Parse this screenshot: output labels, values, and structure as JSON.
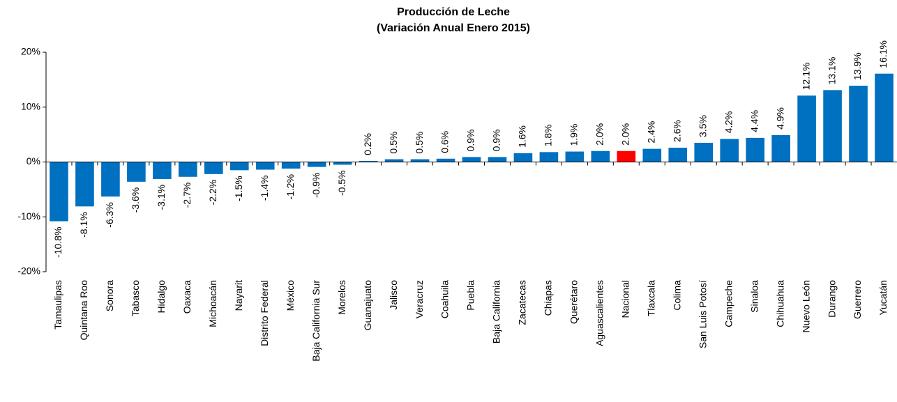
{
  "chart_data": {
    "type": "bar",
    "title": "Producción de Leche",
    "subtitle": "(Variación Anual Enero 2015)",
    "categories": [
      "Tamaulipas",
      "Quintana Roo",
      "Sonora",
      "Tabasco",
      "Hidalgo",
      "Oaxaca",
      "Michoacán",
      "Nayarit",
      "Distrito Federal",
      "México",
      "Baja California Sur",
      "Morelos",
      "Guanajuato",
      "Jalisco",
      "Veracruz",
      "Coahuila",
      "Puebla",
      "Baja California",
      "Zacatecas",
      "Chiapas",
      "Querétaro",
      "Aguascalientes",
      "Nacional",
      "Tlaxcala",
      "Colima",
      "San Luis Potosí",
      "Campeche",
      "Sinaloa",
      "Chihuahua",
      "Nuevo León",
      "Durango",
      "Guerrero",
      "Yucatán"
    ],
    "values": [
      -10.8,
      -8.1,
      -6.3,
      -3.6,
      -3.1,
      -2.7,
      -2.2,
      -1.5,
      -1.4,
      -1.2,
      -0.9,
      -0.5,
      0.2,
      0.5,
      0.5,
      0.6,
      0.9,
      0.9,
      1.6,
      1.8,
      1.9,
      2.0,
      2.0,
      2.4,
      2.6,
      3.5,
      4.2,
      4.4,
      4.9,
      12.1,
      13.1,
      13.9,
      16.1
    ],
    "value_labels": [
      "-10.8%",
      "-8.1%",
      "-6.3%",
      "-3.6%",
      "-3.1%",
      "-2.7%",
      "-2.2%",
      "-1.5%",
      "-1.4%",
      "-1.2%",
      "-0.9%",
      "-0.5%",
      "0.2%",
      "0.5%",
      "0.5%",
      "0.6%",
      "0.9%",
      "0.9%",
      "1.6%",
      "1.8%",
      "1.9%",
      "2.0%",
      "2.0%",
      "2.4%",
      "2.6%",
      "3.5%",
      "4.2%",
      "4.4%",
      "4.9%",
      "12.1%",
      "13.1%",
      "13.9%",
      "16.1%"
    ],
    "colors": [
      "#0070c0",
      "#0070c0",
      "#0070c0",
      "#0070c0",
      "#0070c0",
      "#0070c0",
      "#0070c0",
      "#0070c0",
      "#0070c0",
      "#0070c0",
      "#0070c0",
      "#0070c0",
      "#0070c0",
      "#0070c0",
      "#0070c0",
      "#0070c0",
      "#0070c0",
      "#0070c0",
      "#0070c0",
      "#0070c0",
      "#0070c0",
      "#0070c0",
      "#ff0000",
      "#0070c0",
      "#0070c0",
      "#0070c0",
      "#0070c0",
      "#0070c0",
      "#0070c0",
      "#0070c0",
      "#0070c0",
      "#0070c0",
      "#0070c0"
    ],
    "ylim": [
      -20,
      20
    ],
    "yticks": [
      {
        "value": -20,
        "label": "-20%"
      },
      {
        "value": -10,
        "label": "-10%"
      },
      {
        "value": 0,
        "label": "0%"
      },
      {
        "value": 10,
        "label": "10%"
      },
      {
        "value": 20,
        "label": "20%"
      }
    ],
    "grid": false
  }
}
